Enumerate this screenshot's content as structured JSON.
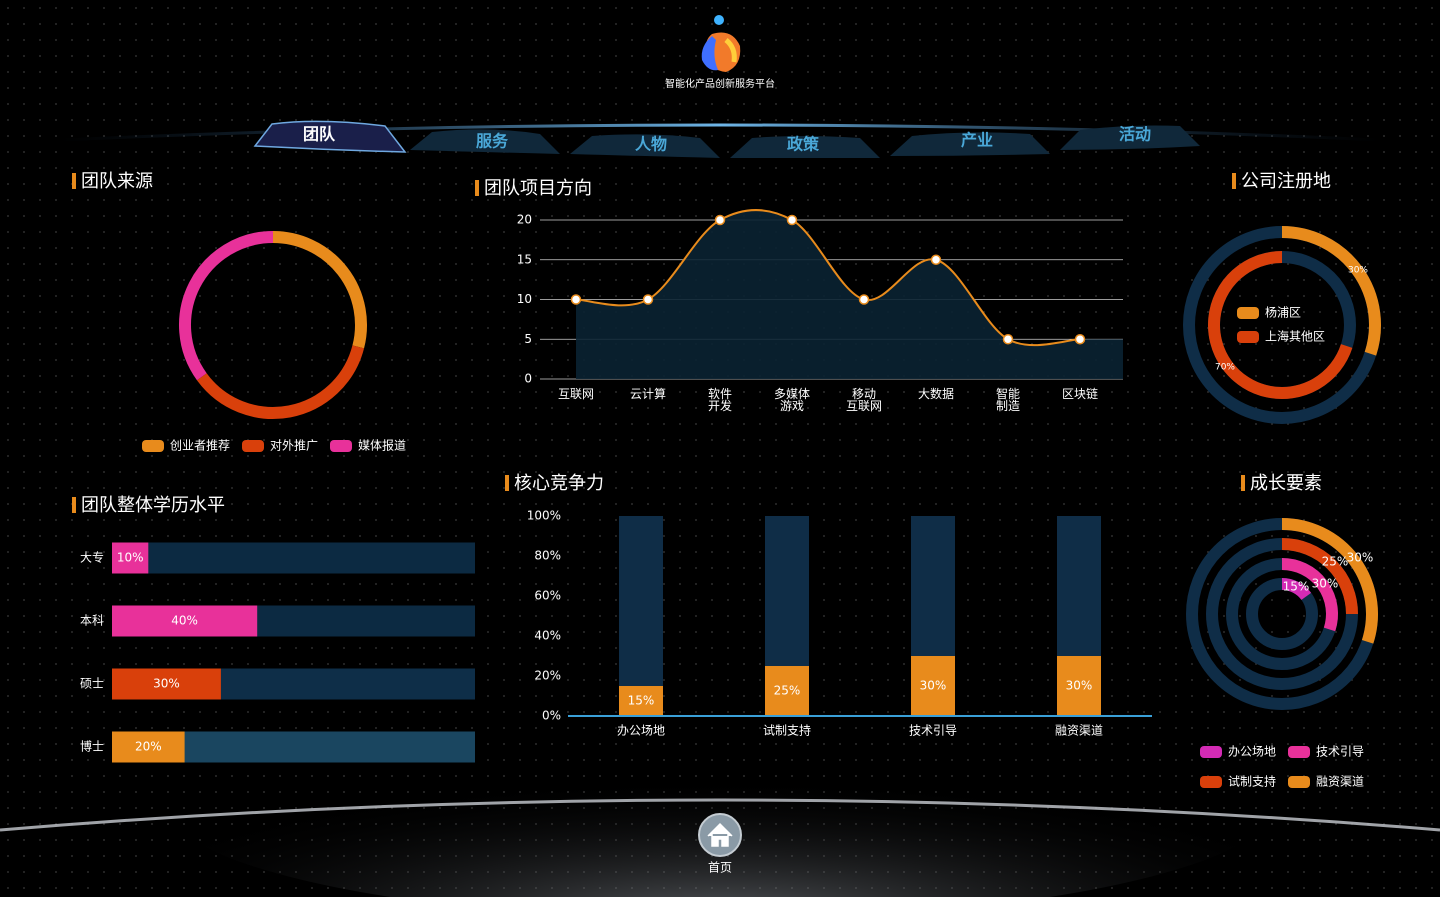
{
  "header": {
    "title": "智能化产品创新服务平台"
  },
  "nav": {
    "tabs": [
      "团队",
      "服务",
      "人物",
      "政策",
      "产业",
      "活动"
    ]
  },
  "footer": {
    "home": "首页"
  },
  "chart_data": [
    {
      "type": "donut",
      "title": "团队来源",
      "categories": [
        "创业者推荐",
        "对外推广",
        "媒体报道"
      ],
      "values": [
        29,
        36,
        35
      ],
      "colors": [
        "#e88b1c",
        "#d9400b",
        "#e8319a"
      ]
    },
    {
      "type": "line",
      "title": "团队项目方向",
      "categories": [
        "互联网",
        "云计算",
        "软件\n开发",
        "多媒体\n游戏",
        "移动\n互联网",
        "大数据",
        "智能\n制造",
        "区块链"
      ],
      "values": [
        10,
        10,
        20,
        20,
        10,
        15,
        5,
        5
      ],
      "color": "#e88b1c",
      "ylim": [
        0,
        20
      ],
      "yticks": [
        0,
        5,
        10,
        15,
        20
      ],
      "grid": true
    },
    {
      "type": "hbar",
      "title": "团队整体学历水平",
      "categories": [
        "大专",
        "本科",
        "硕士",
        "博士"
      ],
      "values": [
        10,
        40,
        30,
        20
      ],
      "value_labels": [
        "10%",
        "40%",
        "30%",
        "20%"
      ],
      "colors": [
        "#e8319a",
        "#e8319a",
        "#d9400b",
        "#e88b1c"
      ],
      "xlim": [
        0,
        100
      ]
    },
    {
      "type": "bar",
      "title": "核心竞争力",
      "categories": [
        "办公场地",
        "试制支持",
        "技术引导",
        "融资渠道"
      ],
      "values": [
        15,
        25,
        30,
        30
      ],
      "value_labels": [
        "15%",
        "25%",
        "30%",
        "30%"
      ],
      "color": "#e88b1c",
      "ylim": [
        0,
        100
      ],
      "yticks": [
        {
          "value": 0,
          "label": "0%"
        },
        {
          "value": 20,
          "label": "20%"
        },
        {
          "value": 40,
          "label": "40%"
        },
        {
          "value": 60,
          "label": "60%"
        },
        {
          "value": 80,
          "label": "80%"
        },
        {
          "value": 100,
          "label": "100%"
        }
      ]
    },
    {
      "type": "rings",
      "title": "公司注册地",
      "categories": [
        "杨浦区",
        "上海其他区"
      ],
      "values": [
        30,
        70
      ],
      "value_labels": [
        "30%",
        "70%"
      ],
      "colors": [
        "#e88b1c",
        "#d9400b"
      ],
      "xlim": [
        0,
        100
      ]
    },
    {
      "type": "rings",
      "title": "成长要素",
      "categories": [
        "办公场地",
        "技术引导",
        "试制支持",
        "融资渠道"
      ],
      "values": [
        15,
        30,
        25,
        30
      ],
      "value_labels": [
        "15%",
        "30%",
        "25%",
        "30%"
      ],
      "colors": [
        "#d42bb5",
        "#e8319a",
        "#d9400b",
        "#e88b1c"
      ],
      "xlim": [
        0,
        100
      ]
    }
  ]
}
